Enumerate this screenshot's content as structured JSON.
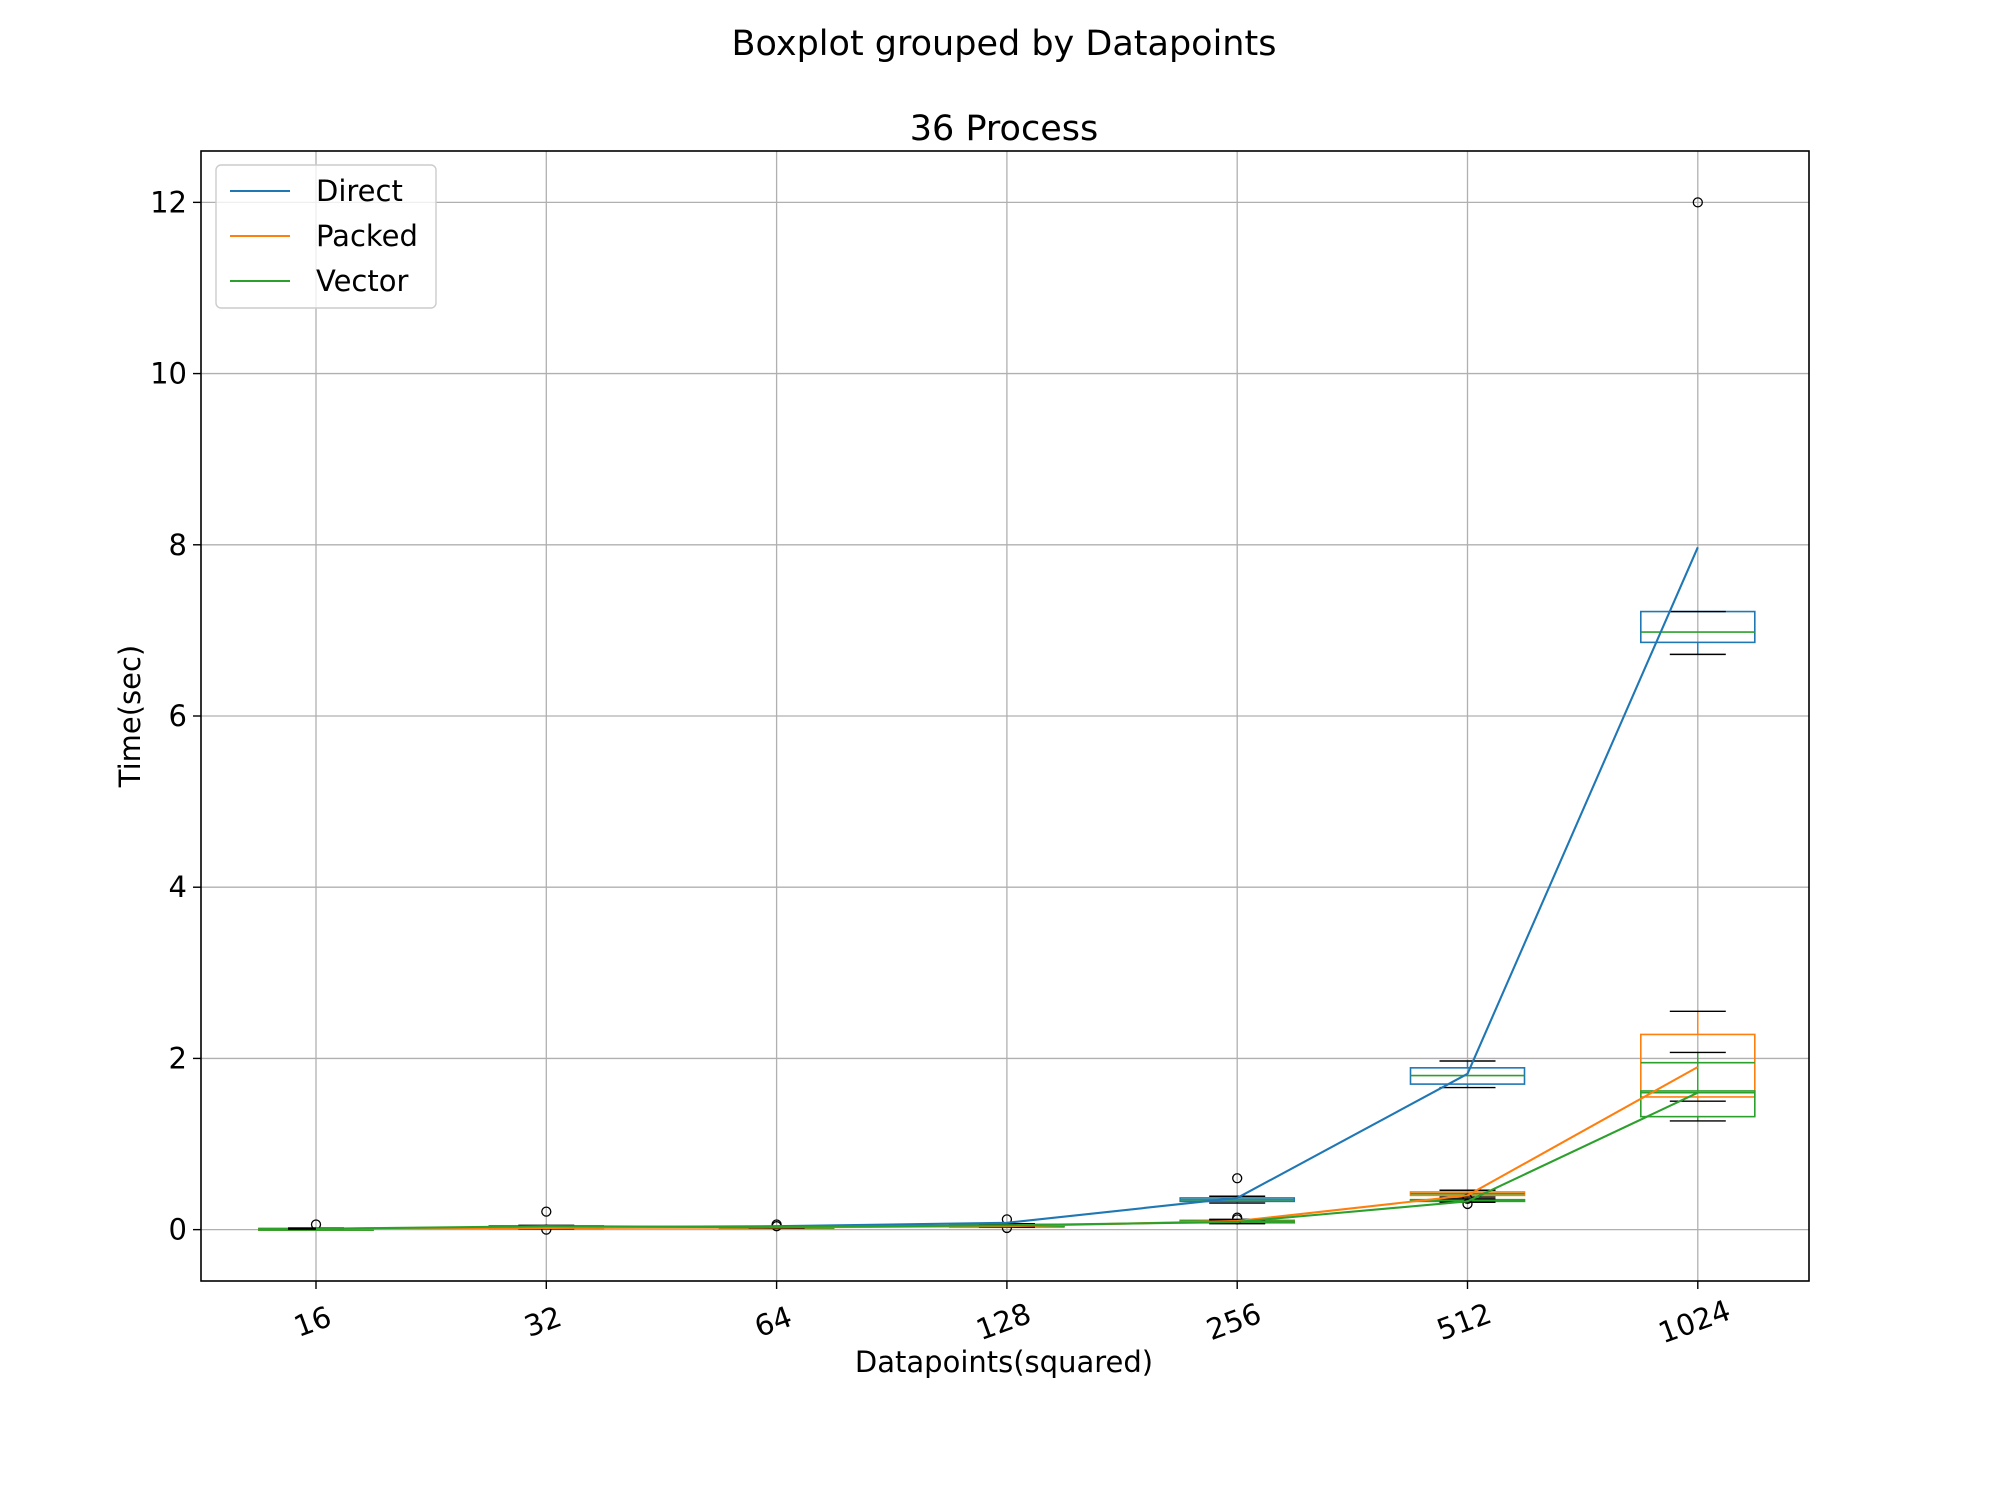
{
  "chart_data": {
    "type": "box",
    "suptitle": "Boxplot grouped by Datapoints",
    "title": "36 Process",
    "xlabel": "Datapoints(squared)",
    "ylabel": "Time(sec)",
    "categories": [
      "16",
      "32",
      "64",
      "128",
      "256",
      "512",
      "1024"
    ],
    "ylim": [
      -0.6,
      12.6
    ],
    "yticks": [
      0,
      2,
      4,
      6,
      8,
      10,
      12
    ],
    "grid": true,
    "legend": {
      "placement": "top-left",
      "entries": [
        "Direct",
        "Packed",
        "Vector"
      ]
    },
    "colors": {
      "Direct": "#1f77b4",
      "Packed": "#ff7f0e",
      "Vector": "#2ca02c",
      "whisker": "#000000",
      "grid": "#b0b0b0"
    },
    "series": [
      {
        "name": "Direct",
        "line_values": [
          0.01,
          0.03,
          0.04,
          0.08,
          0.37,
          1.82,
          7.97
        ],
        "boxes": [
          {
            "whislo": 0.005,
            "q1": 0.008,
            "med": 0.01,
            "q3": 0.013,
            "whishi": 0.02,
            "fliers": [
              0.06
            ]
          },
          {
            "whislo": 0.01,
            "q1": 0.015,
            "med": 0.02,
            "q3": 0.03,
            "whishi": 0.04,
            "fliers": [
              0.21
            ]
          },
          {
            "whislo": 0.02,
            "q1": 0.025,
            "med": 0.03,
            "q3": 0.035,
            "whishi": 0.04,
            "fliers": [
              0.06
            ]
          },
          {
            "whislo": 0.03,
            "q1": 0.04,
            "med": 0.05,
            "q3": 0.06,
            "whishi": 0.07,
            "fliers": [
              0.12
            ]
          },
          {
            "whislo": 0.31,
            "q1": 0.33,
            "med": 0.35,
            "q3": 0.37,
            "whishi": 0.39,
            "fliers": [
              0.6
            ]
          },
          {
            "whislo": 1.66,
            "q1": 1.7,
            "med": 1.8,
            "q3": 1.89,
            "whishi": 1.97,
            "fliers": []
          },
          {
            "whislo": 6.72,
            "q1": 6.86,
            "med": 6.98,
            "q3": 7.22,
            "whishi": 7.22,
            "fliers": [
              12.0
            ]
          }
        ]
      },
      {
        "name": "Packed",
        "line_values": [
          0.01,
          0.02,
          0.025,
          0.04,
          0.1,
          0.4,
          1.9
        ],
        "boxes": [
          {
            "whislo": 0.005,
            "q1": 0.008,
            "med": 0.01,
            "q3": 0.012,
            "whishi": 0.015,
            "fliers": []
          },
          {
            "whislo": 0.01,
            "q1": 0.015,
            "med": 0.02,
            "q3": 0.025,
            "whishi": 0.03,
            "fliers": [
              0.0
            ]
          },
          {
            "whislo": 0.015,
            "q1": 0.02,
            "med": 0.025,
            "q3": 0.03,
            "whishi": 0.035,
            "fliers": [
              0.04
            ]
          },
          {
            "whislo": 0.03,
            "q1": 0.035,
            "med": 0.04,
            "q3": 0.045,
            "whishi": 0.05,
            "fliers": [
              0.02
            ]
          },
          {
            "whislo": 0.08,
            "q1": 0.09,
            "med": 0.1,
            "q3": 0.11,
            "whishi": 0.12,
            "fliers": [
              0.14
            ]
          },
          {
            "whislo": 0.38,
            "q1": 0.4,
            "med": 0.42,
            "q3": 0.44,
            "whishi": 0.46,
            "fliers": [
              0.36
            ]
          },
          {
            "whislo": 1.5,
            "q1": 1.55,
            "med": 1.95,
            "q3": 2.28,
            "whishi": 2.55,
            "fliers": []
          }
        ]
      },
      {
        "name": "Vector",
        "line_values": [
          0.01,
          0.04,
          0.03,
          0.05,
          0.09,
          0.33,
          1.6
        ],
        "boxes": [
          {
            "whislo": 0.005,
            "q1": 0.008,
            "med": 0.01,
            "q3": 0.012,
            "whishi": 0.015,
            "fliers": []
          },
          {
            "whislo": 0.02,
            "q1": 0.03,
            "med": 0.04,
            "q3": 0.045,
            "whishi": 0.05,
            "fliers": []
          },
          {
            "whislo": 0.015,
            "q1": 0.02,
            "med": 0.03,
            "q3": 0.035,
            "whishi": 0.04,
            "fliers": []
          },
          {
            "whislo": 0.03,
            "q1": 0.04,
            "med": 0.05,
            "q3": 0.06,
            "whishi": 0.07,
            "fliers": []
          },
          {
            "whislo": 0.07,
            "q1": 0.08,
            "med": 0.09,
            "q3": 0.1,
            "whishi": 0.11,
            "fliers": [
              0.12
            ]
          },
          {
            "whislo": 0.32,
            "q1": 0.33,
            "med": 0.34,
            "q3": 0.35,
            "whishi": 0.36,
            "fliers": [
              0.3
            ]
          },
          {
            "whislo": 1.27,
            "q1": 1.32,
            "med": 1.6,
            "q3": 1.62,
            "whishi": 2.07,
            "fliers": []
          }
        ]
      }
    ]
  }
}
